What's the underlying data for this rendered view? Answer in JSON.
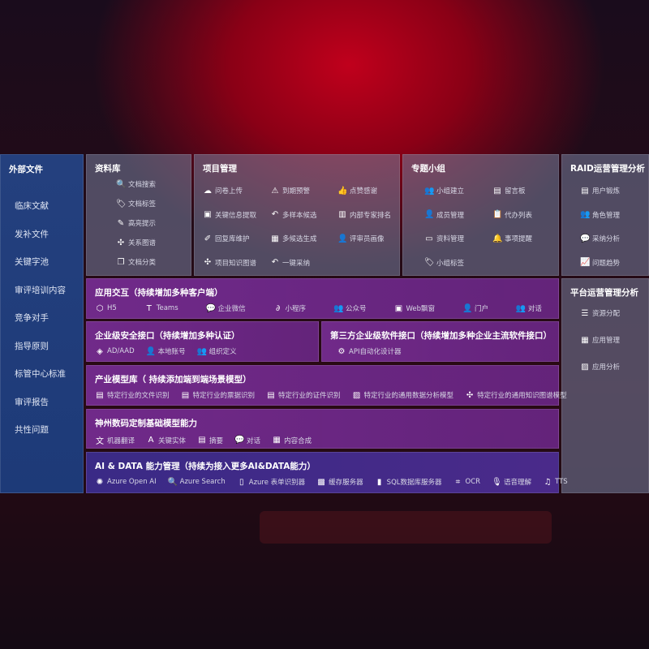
{
  "sidebar": {
    "title": "外部文件",
    "items": [
      "临床文献",
      "发补文件",
      "关键字池",
      "审评培训内容",
      "竞争对手",
      "指导原则",
      "标管中心标准",
      "审评报告",
      "共性问题"
    ]
  },
  "library": {
    "title": "资料库",
    "items": [
      {
        "icon": "doc-search-icon",
        "label": "文档搜索"
      },
      {
        "icon": "tag-icon",
        "label": "文档标签"
      },
      {
        "icon": "pen-icon",
        "label": "高亮提示"
      },
      {
        "icon": "graph-icon",
        "label": "关系图谱"
      },
      {
        "icon": "copy-icon",
        "label": "文档分类"
      }
    ]
  },
  "project": {
    "title": "项目管理",
    "items": [
      {
        "icon": "cloud-upload-icon",
        "label": "问卷上传"
      },
      {
        "icon": "alarm-icon",
        "label": "到期预警"
      },
      {
        "icon": "thumbs-up-icon",
        "label": "点赞感谢"
      },
      {
        "icon": "window-icon",
        "label": "关键信息提取"
      },
      {
        "icon": "reply-icon",
        "label": "多样本候选"
      },
      {
        "icon": "ranking-icon",
        "label": "内部专家排名"
      },
      {
        "icon": "edit-icon",
        "label": "回复库维护"
      },
      {
        "icon": "puzzle-icon",
        "label": "多候选生成"
      },
      {
        "icon": "user-icon",
        "label": "评审员画像"
      },
      {
        "icon": "graph-icon",
        "label": "项目知识图谱"
      },
      {
        "icon": "reply-icon",
        "label": "一键采纳"
      }
    ]
  },
  "group": {
    "title": "专题小组",
    "items": [
      {
        "icon": "users-icon",
        "label": "小组建立"
      },
      {
        "icon": "bbs-icon",
        "label": "留言板"
      },
      {
        "icon": "user-add-icon",
        "label": "成员管理"
      },
      {
        "icon": "clipboard-icon",
        "label": "代办列表"
      },
      {
        "icon": "folder-icon",
        "label": "资料管理"
      },
      {
        "icon": "bell-icon",
        "label": "事项提醒"
      },
      {
        "icon": "tag-icon",
        "label": "小组标签"
      }
    ]
  },
  "raid": {
    "title": "RAID运营管理分析",
    "items": [
      {
        "icon": "id-card-icon",
        "label": "用户锻炼"
      },
      {
        "icon": "users-icon",
        "label": "角色管理"
      },
      {
        "icon": "qa-icon",
        "label": "采纳分析"
      },
      {
        "icon": "trend-icon",
        "label": "问题趋势"
      }
    ]
  },
  "platform": {
    "title": "平台运营管理分析",
    "items": [
      {
        "icon": "list-icon",
        "label": "资源分配"
      },
      {
        "icon": "apps-icon",
        "label": "应用管理"
      },
      {
        "icon": "chart-icon",
        "label": "应用分析"
      }
    ]
  },
  "app": {
    "title": "应用交互（持续增加多种客户端）",
    "items": [
      {
        "icon": "html5-icon",
        "label": "H5"
      },
      {
        "icon": "teams-icon",
        "label": "Teams"
      },
      {
        "icon": "wechat-icon",
        "label": "企业微信"
      },
      {
        "icon": "miniprogram-icon",
        "label": "小程序"
      },
      {
        "icon": "users-icon",
        "label": "公众号"
      },
      {
        "icon": "window-icon",
        "label": "Web飘窗"
      },
      {
        "icon": "portal-icon",
        "label": "门户"
      },
      {
        "icon": "chat-users-icon",
        "label": "对话"
      }
    ]
  },
  "security": {
    "title": "企业级安全接口（持续增加多种认证）",
    "items": [
      {
        "icon": "diamond-icon",
        "label": "AD/AAD"
      },
      {
        "icon": "user-lock-icon",
        "label": "本地账号"
      },
      {
        "icon": "org-icon",
        "label": "组织定义"
      }
    ]
  },
  "third": {
    "title": "第三方企业级软件接口（持续增加多种企业主流软件接口）",
    "items": [
      {
        "icon": "gear-icon",
        "label": "API自动化设计器"
      }
    ]
  },
  "industry": {
    "title": "产业模型库（ 持续添加端到端场景模型）",
    "items": [
      {
        "icon": "doc-icon",
        "label": "特定行业的文件识别"
      },
      {
        "icon": "receipt-icon",
        "label": "特定行业的票据识别"
      },
      {
        "icon": "id-card-icon",
        "label": "特定行业的证件识别"
      },
      {
        "icon": "image-icon",
        "label": "特定行业的通用数据分析模型"
      },
      {
        "icon": "graph-icon",
        "label": "特定行业的通用知识图谱模型"
      }
    ]
  },
  "base": {
    "title": "神州数码定制基础模型能力",
    "items": [
      {
        "icon": "translate-icon",
        "label": "机器翻译"
      },
      {
        "icon": "entity-icon",
        "label": "关键实体"
      },
      {
        "icon": "doc-icon",
        "label": "摘要"
      },
      {
        "icon": "chat-icon",
        "label": "对话"
      },
      {
        "icon": "puzzle-icon",
        "label": "内容合成"
      }
    ]
  },
  "ai": {
    "title": "AI & DATA 能力管理（持续为接入更多AI&DATA能力）",
    "items": [
      {
        "icon": "openai-icon",
        "label": "Azure Open AI"
      },
      {
        "icon": "search-icon",
        "label": "Azure Search"
      },
      {
        "icon": "form-icon",
        "label": "Azure 表单识别器"
      },
      {
        "icon": "cache-icon",
        "label": "缓存服务器"
      },
      {
        "icon": "database-icon",
        "label": "SQL数据库服务器"
      },
      {
        "icon": "ocr-icon",
        "label": "OCR"
      },
      {
        "icon": "mic-icon",
        "label": "语音理解"
      },
      {
        "icon": "tts-icon",
        "label": "TTS"
      }
    ]
  }
}
